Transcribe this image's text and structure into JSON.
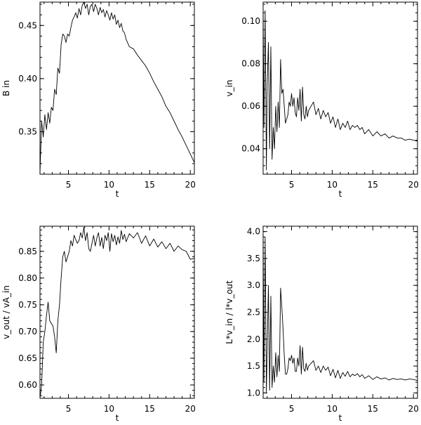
{
  "chart_data": [
    {
      "type": "line",
      "xlabel": "t",
      "ylabel": "B in",
      "xlim": [
        1.5,
        20.5
      ],
      "ylim": [
        0.31,
        0.472
      ],
      "xticks": [
        5,
        10,
        15,
        20
      ],
      "yticks": [
        0.35,
        0.4,
        0.45
      ],
      "xtick_labels": [
        "5",
        "10",
        "15",
        "20"
      ],
      "ytick_labels": [
        "0.35",
        "0.40",
        "0.45"
      ],
      "x": [
        1.5,
        1.7,
        1.9,
        2.1,
        2.3,
        2.5,
        2.7,
        2.9,
        3.1,
        3.3,
        3.5,
        3.7,
        3.9,
        4.1,
        4.3,
        4.5,
        4.7,
        4.9,
        5.1,
        5.3,
        5.5,
        5.7,
        5.9,
        6.1,
        6.3,
        6.5,
        6.7,
        6.9,
        7.1,
        7.3,
        7.5,
        7.7,
        7.9,
        8.1,
        8.3,
        8.5,
        8.7,
        8.9,
        9.1,
        9.3,
        9.5,
        9.7,
        9.9,
        10.1,
        10.3,
        10.5,
        10.7,
        10.9,
        11.1,
        11.3,
        11.5,
        11.7,
        11.9,
        12.1,
        12.5,
        13.0,
        13.5,
        14.0,
        14.5,
        15.0,
        15.5,
        16.0,
        16.5,
        17.0,
        17.5,
        18.0,
        18.5,
        19.0,
        19.5,
        20.0,
        20.5
      ],
      "y": [
        0.311,
        0.36,
        0.345,
        0.366,
        0.352,
        0.368,
        0.358,
        0.373,
        0.37,
        0.39,
        0.385,
        0.41,
        0.405,
        0.432,
        0.442,
        0.44,
        0.434,
        0.442,
        0.44,
        0.448,
        0.455,
        0.458,
        0.462,
        0.457,
        0.466,
        0.46,
        0.469,
        0.472,
        0.466,
        0.47,
        0.46,
        0.468,
        0.47,
        0.463,
        0.47,
        0.466,
        0.46,
        0.467,
        0.462,
        0.465,
        0.458,
        0.464,
        0.46,
        0.455,
        0.462,
        0.456,
        0.46,
        0.451,
        0.455,
        0.448,
        0.452,
        0.445,
        0.443,
        0.437,
        0.43,
        0.428,
        0.422,
        0.417,
        0.412,
        0.405,
        0.397,
        0.39,
        0.383,
        0.374,
        0.368,
        0.36,
        0.352,
        0.345,
        0.337,
        0.329,
        0.321
      ]
    },
    {
      "type": "line",
      "xlabel": "t",
      "ylabel": "v_in",
      "xlim": [
        1.5,
        20.5
      ],
      "ylim": [
        0.028,
        0.109
      ],
      "xticks": [
        5,
        10,
        15,
        20
      ],
      "yticks": [
        0.04,
        0.06,
        0.08,
        0.1
      ],
      "xtick_labels": [
        "5",
        "10",
        "15",
        "20"
      ],
      "ytick_labels": [
        "0.04",
        "0.06",
        "0.08",
        "0.10"
      ],
      "x": [
        1.5,
        1.6,
        1.75,
        1.9,
        2.0,
        2.15,
        2.3,
        2.45,
        2.6,
        2.75,
        2.9,
        3.05,
        3.2,
        3.35,
        3.5,
        3.65,
        3.8,
        3.95,
        4.1,
        4.25,
        4.4,
        4.55,
        4.7,
        4.85,
        5.0,
        5.15,
        5.3,
        5.45,
        5.6,
        5.75,
        5.9,
        6.05,
        6.2,
        6.35,
        6.5,
        6.65,
        6.8,
        6.95,
        7.1,
        7.4,
        7.7,
        8.0,
        8.3,
        8.6,
        8.9,
        9.2,
        9.5,
        9.8,
        10.1,
        10.4,
        10.7,
        11.0,
        11.3,
        11.6,
        11.9,
        12.2,
        12.5,
        12.8,
        13.1,
        13.4,
        13.7,
        14.0,
        14.5,
        15.0,
        15.5,
        16.0,
        16.5,
        17.0,
        17.5,
        18.0,
        18.5,
        19.0,
        19.5,
        20.0,
        20.5
      ],
      "y": [
        0.108,
        0.05,
        0.105,
        0.03,
        0.07,
        0.09,
        0.04,
        0.088,
        0.035,
        0.05,
        0.04,
        0.06,
        0.048,
        0.062,
        0.05,
        0.082,
        0.066,
        0.068,
        0.06,
        0.052,
        0.054,
        0.056,
        0.062,
        0.06,
        0.066,
        0.06,
        0.064,
        0.057,
        0.055,
        0.064,
        0.058,
        0.068,
        0.053,
        0.069,
        0.056,
        0.054,
        0.06,
        0.055,
        0.058,
        0.06,
        0.062,
        0.056,
        0.059,
        0.054,
        0.058,
        0.055,
        0.057,
        0.052,
        0.055,
        0.05,
        0.054,
        0.049,
        0.052,
        0.05,
        0.053,
        0.049,
        0.051,
        0.05,
        0.051,
        0.049,
        0.05,
        0.047,
        0.049,
        0.046,
        0.048,
        0.046,
        0.047,
        0.045,
        0.046,
        0.045,
        0.045,
        0.044,
        0.0445,
        0.044,
        0.0435
      ]
    },
    {
      "type": "line",
      "xlabel": "t",
      "ylabel": "v_out / vA_in",
      "xlim": [
        1.5,
        20.5
      ],
      "ylim": [
        0.575,
        0.897
      ],
      "xticks": [
        5,
        10,
        15,
        20
      ],
      "yticks": [
        0.6,
        0.65,
        0.7,
        0.75,
        0.8,
        0.85
      ],
      "xtick_labels": [
        "5",
        "10",
        "15",
        "20"
      ],
      "ytick_labels": [
        "0.60",
        "0.65",
        "0.70",
        "0.75",
        "0.80",
        "0.85"
      ],
      "x": [
        1.5,
        1.7,
        1.9,
        2.1,
        2.3,
        2.5,
        2.7,
        2.9,
        3.1,
        3.3,
        3.5,
        3.7,
        3.9,
        4.1,
        4.3,
        4.5,
        4.7,
        4.9,
        5.1,
        5.3,
        5.5,
        5.7,
        5.9,
        6.1,
        6.3,
        6.5,
        6.7,
        6.9,
        7.1,
        7.3,
        7.5,
        7.7,
        7.9,
        8.1,
        8.3,
        8.5,
        8.7,
        8.9,
        9.1,
        9.3,
        9.5,
        9.7,
        9.9,
        10.1,
        10.3,
        10.5,
        10.7,
        10.9,
        11.1,
        11.3,
        11.5,
        11.7,
        11.9,
        12.1,
        12.5,
        13.0,
        13.5,
        14.0,
        14.5,
        15.0,
        15.5,
        16.0,
        16.5,
        17.0,
        17.5,
        18.0,
        18.5,
        19.0,
        19.5,
        20.0,
        20.5
      ],
      "y": [
        0.575,
        0.6,
        0.68,
        0.7,
        0.73,
        0.755,
        0.72,
        0.715,
        0.71,
        0.69,
        0.66,
        0.72,
        0.75,
        0.8,
        0.84,
        0.85,
        0.83,
        0.84,
        0.85,
        0.87,
        0.86,
        0.88,
        0.872,
        0.865,
        0.87,
        0.885,
        0.875,
        0.895,
        0.87,
        0.885,
        0.855,
        0.85,
        0.865,
        0.88,
        0.86,
        0.875,
        0.885,
        0.86,
        0.876,
        0.855,
        0.88,
        0.87,
        0.885,
        0.85,
        0.883,
        0.868,
        0.88,
        0.862,
        0.877,
        0.865,
        0.889,
        0.872,
        0.882,
        0.868,
        0.883,
        0.875,
        0.885,
        0.865,
        0.879,
        0.86,
        0.873,
        0.858,
        0.868,
        0.855,
        0.865,
        0.85,
        0.86,
        0.853,
        0.85,
        0.835,
        0.837
      ]
    },
    {
      "type": "line",
      "xlabel": "t",
      "ylabel": "L*v_in / l*v_out",
      "xlim": [
        1.5,
        20.5
      ],
      "ylim": [
        0.9,
        4.1
      ],
      "xticks": [
        5,
        10,
        15,
        20
      ],
      "yticks": [
        1.0,
        1.5,
        2.0,
        2.5,
        3.0,
        3.5,
        4.0
      ],
      "xtick_labels": [
        "5",
        "10",
        "15",
        "20"
      ],
      "ytick_labels": [
        "1.0",
        "1.5",
        "2.0",
        "2.5",
        "3.0",
        "3.5",
        "4.0"
      ],
      "x": [
        1.5,
        1.6,
        1.75,
        1.9,
        2.0,
        2.15,
        2.3,
        2.45,
        2.6,
        2.75,
        2.9,
        3.05,
        3.2,
        3.35,
        3.5,
        3.65,
        3.8,
        3.95,
        4.1,
        4.25,
        4.4,
        4.55,
        4.7,
        4.85,
        5.0,
        5.15,
        5.3,
        5.45,
        5.6,
        5.75,
        5.9,
        6.05,
        6.2,
        6.35,
        6.5,
        6.65,
        6.8,
        6.95,
        7.1,
        7.4,
        7.7,
        8.0,
        8.3,
        8.6,
        8.9,
        9.2,
        9.5,
        9.8,
        10.1,
        10.4,
        10.7,
        11.0,
        11.3,
        11.6,
        11.9,
        12.2,
        12.5,
        12.8,
        13.1,
        13.4,
        13.7,
        14.0,
        14.5,
        15.0,
        15.5,
        16.0,
        16.5,
        17.0,
        17.5,
        18.0,
        18.5,
        19.0,
        19.5,
        20.0,
        20.5
      ],
      "y": [
        4.05,
        1.2,
        3.9,
        1.0,
        1.8,
        3.0,
        1.05,
        2.8,
        1.1,
        1.5,
        1.2,
        1.75,
        1.3,
        1.7,
        1.4,
        2.95,
        2.6,
        2.2,
        1.7,
        1.35,
        1.35,
        1.45,
        1.65,
        1.6,
        1.7,
        1.55,
        1.65,
        1.4,
        1.4,
        1.65,
        1.5,
        1.88,
        1.35,
        1.85,
        1.45,
        1.4,
        1.55,
        1.42,
        1.5,
        1.55,
        1.6,
        1.42,
        1.5,
        1.38,
        1.5,
        1.42,
        1.48,
        1.32,
        1.44,
        1.28,
        1.42,
        1.27,
        1.38,
        1.31,
        1.4,
        1.3,
        1.35,
        1.32,
        1.36,
        1.3,
        1.34,
        1.27,
        1.32,
        1.25,
        1.3,
        1.26,
        1.28,
        1.24,
        1.27,
        1.25,
        1.26,
        1.24,
        1.26,
        1.25,
        1.23
      ]
    }
  ]
}
